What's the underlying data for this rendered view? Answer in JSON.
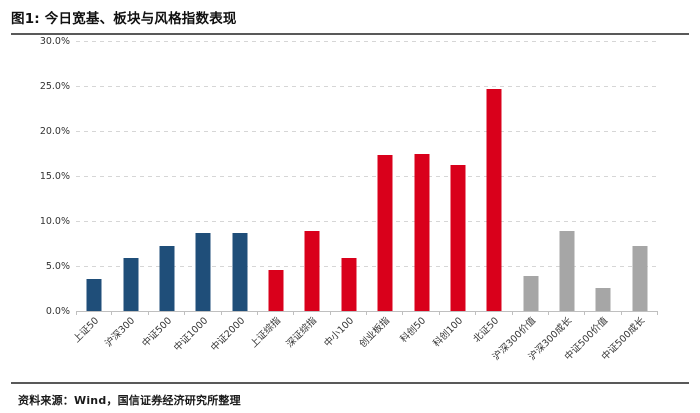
{
  "header": {
    "title": "图1: 今日宽基、板块与风格指数表现"
  },
  "footer": {
    "source": "资料来源：Wind，国信证券经济研究所整理"
  },
  "colors": {
    "broad_base_blue": "#1F4E79",
    "sector_red": "#D9001B",
    "style_gray": "#A6A6A6"
  },
  "chart_data": {
    "type": "bar",
    "title": "图1: 今日宽基、板块与风格指数表现",
    "xlabel": "",
    "ylabel": "",
    "unit": "%",
    "ylim": [
      0,
      30
    ],
    "ytick_step": 5,
    "ytick_labels": [
      "0.0%",
      "5.0%",
      "10.0%",
      "15.0%",
      "20.0%",
      "25.0%",
      "30.0%"
    ],
    "grid": "horizontal-dashed",
    "legend": "none",
    "categories": [
      "上证50",
      "沪深300",
      "中证500",
      "中证1000",
      "中证2000",
      "上证综指",
      "深证综指",
      "中小100",
      "创业板指",
      "科创50",
      "科创100",
      "北证50",
      "沪深300价值",
      "沪深300成长",
      "中证500价值",
      "中证500成长"
    ],
    "values": [
      3.6,
      5.9,
      7.2,
      8.7,
      8.7,
      4.6,
      8.9,
      5.9,
      17.3,
      17.4,
      16.2,
      24.7,
      3.9,
      8.9,
      2.6,
      7.2
    ],
    "bar_colors": [
      "#1F4E79",
      "#1F4E79",
      "#1F4E79",
      "#1F4E79",
      "#1F4E79",
      "#D9001B",
      "#D9001B",
      "#D9001B",
      "#D9001B",
      "#D9001B",
      "#D9001B",
      "#D9001B",
      "#A6A6A6",
      "#A6A6A6",
      "#A6A6A6",
      "#A6A6A6"
    ]
  }
}
